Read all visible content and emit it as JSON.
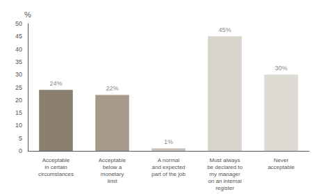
{
  "chart_data": {
    "type": "bar",
    "ylabel": "%",
    "categories": [
      "Acceptable\nin certain\ncircumstances",
      "Acceptable\nbelow a\nmonetary\nlimit",
      "A normal\nand expected\npart of the job",
      "Must always\nbe declared to\nmy manager\non an internal\nregister",
      "Never\nacceptable"
    ],
    "values": [
      24,
      22,
      1,
      45,
      30
    ],
    "value_labels": [
      "24%",
      "22%",
      "1%",
      "45%",
      "30%"
    ],
    "data_labels": true,
    "colors": [
      "#8b8070",
      "#a89a8a",
      "#c8c2ba",
      "#d8d4cc",
      "#dedad4"
    ],
    "ylim": [
      0,
      50
    ],
    "yticks": [
      0,
      5,
      10,
      15,
      20,
      25,
      30,
      35,
      40,
      45,
      50
    ],
    "grid": false
  }
}
